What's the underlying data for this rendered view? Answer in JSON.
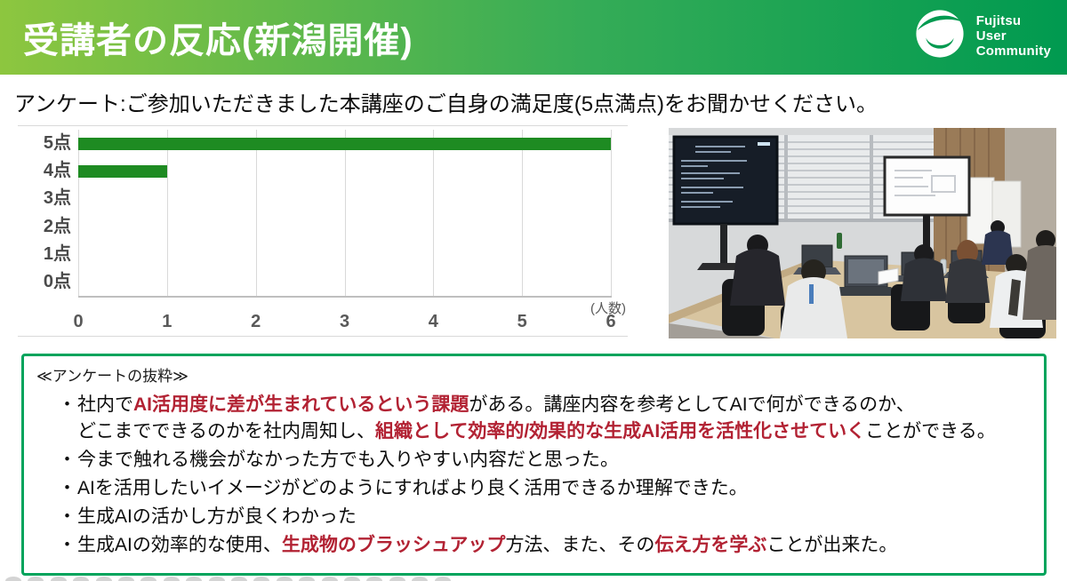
{
  "header": {
    "title": "受講者の反応(新潟開催)",
    "logo_lines": [
      "Fujitsu",
      "User",
      "Community"
    ]
  },
  "subtitle": "アンケート:ご参加いただきました本講座のご自身の満足度(5点満点)をお聞かせください。",
  "chart_data": {
    "type": "bar",
    "orientation": "horizontal",
    "title": "",
    "categories": [
      "5点",
      "4点",
      "3点",
      "2点",
      "1点",
      "0点"
    ],
    "values": [
      6,
      1,
      0,
      0,
      0,
      0
    ],
    "xlabel": "(人数)",
    "ylabel": "",
    "xlim": [
      0,
      6
    ],
    "xticks": [
      0,
      1,
      2,
      3,
      4,
      5,
      6
    ],
    "grid": true,
    "legend": false,
    "bar_color": "#1e8b22"
  },
  "photo": {
    "description": "セミナー会場の写真(受講者とスクリーン)"
  },
  "quotes": {
    "title": "≪アンケートの抜粋≫",
    "bullets": [
      [
        {
          "text": "社内で"
        },
        {
          "text": "AI活用度に差が生まれているという課題",
          "red": true
        },
        {
          "text": "がある。講座内容を参考としてAIで何ができるのか、",
          "br": true
        },
        {
          "text": "どこまでできるのかを社内周知し、"
        },
        {
          "text": "組織として効率的/効果的な生成AI活用を活性化させていく",
          "red": true
        },
        {
          "text": "ことができる。"
        }
      ],
      [
        {
          "text": "今まで触れる機会がなかった方でも入りやすい内容だと思った。"
        }
      ],
      [
        {
          "text": "AIを活用したいイメージがどのようにすればより良く活用できるか理解できた。"
        }
      ],
      [
        {
          "text": "生成AIの活かし方が良くわかった"
        }
      ],
      [
        {
          "text": "生成AIの効率的な使用、"
        },
        {
          "text": "生成物のブラッシュアップ",
          "red": true
        },
        {
          "text": "方法、また、その"
        },
        {
          "text": "伝え方を学ぶ",
          "red": true
        },
        {
          "text": "ことが出来た。"
        }
      ]
    ]
  },
  "colors": {
    "gradient_left": "#8dc63f",
    "gradient_mid": "#35ac57",
    "gradient_right": "#009a50",
    "box_border_green": "#00a45c",
    "bar_green": "#1e8b22",
    "emphasis_red": "#b22233"
  }
}
